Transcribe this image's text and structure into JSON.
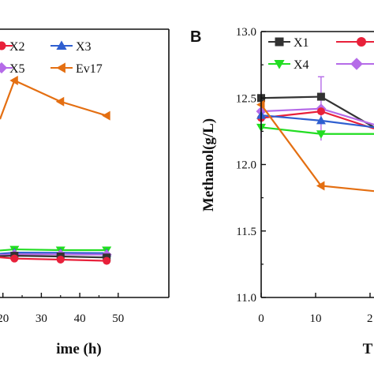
{
  "colors": {
    "X1": "#333333",
    "X2": "#e8203a",
    "X3": "#2f5fd0",
    "X4": "#22dd22",
    "X5": "#b56be8",
    "Ev17": "#e46f12",
    "axis": "#111111"
  },
  "chart_data": [
    {
      "panel": "A",
      "type": "line",
      "xlabel": "Time (h)",
      "ylabel": "",
      "xlim": [
        0,
        50
      ],
      "xticks": [
        "20",
        "30",
        "40",
        "50"
      ],
      "legend": [
        {
          "name": "X2",
          "marker": "circle"
        },
        {
          "name": "X3",
          "marker": "triangle-up"
        },
        {
          "name": "X5",
          "marker": "diamond"
        },
        {
          "name": "Ev17",
          "marker": "triangle-left"
        }
      ],
      "series": [
        {
          "name": "Ev17",
          "marker": "triangle-left",
          "color_key": "Ev17",
          "x": [
            12,
            23,
            35,
            47
          ],
          "y": [
            0.78,
            1.0,
            0.88,
            0.8
          ]
        },
        {
          "name": "X4",
          "marker": "triangle-down",
          "color_key": "X4",
          "x": [
            12,
            23,
            35,
            47
          ],
          "y": [
            0.034,
            0.04,
            0.036,
            0.036
          ]
        },
        {
          "name": "X3",
          "marker": "triangle-up",
          "color_key": "X3",
          "x": [
            12,
            23,
            35,
            47
          ],
          "y": [
            0.015,
            0.022,
            0.021,
            0.019
          ]
        },
        {
          "name": "X5",
          "marker": "diamond",
          "color_key": "X5",
          "x": [
            12,
            23,
            35,
            47
          ],
          "y": [
            0.008,
            0.012,
            0.012,
            0.01
          ]
        },
        {
          "name": "X1",
          "marker": "square",
          "color_key": "X1",
          "x": [
            12,
            23,
            35,
            47
          ],
          "y": [
            0.002,
            0.004,
            0.0,
            -0.006
          ]
        },
        {
          "name": "X2",
          "marker": "circle",
          "color_key": "X2",
          "x": [
            12,
            23,
            35,
            47
          ],
          "y": [
            -0.005,
            -0.012,
            -0.018,
            -0.025
          ]
        }
      ]
    },
    {
      "panel": "B",
      "type": "line",
      "xlabel": "T",
      "ylabel": "Methanol(g/L)",
      "xlim": [
        0,
        25
      ],
      "ylim": [
        11.0,
        13.0
      ],
      "yticks": [
        "11.0",
        "11.5",
        "12.0",
        "12.5",
        "13.0"
      ],
      "xticks": [
        "0",
        "10",
        "2"
      ],
      "legend": [
        {
          "name": "X1",
          "marker": "square"
        },
        {
          "name": "X4",
          "marker": "triangle-down"
        }
      ],
      "series": [
        {
          "name": "X1",
          "marker": "square",
          "color_key": "X1",
          "x": [
            0,
            11,
            25
          ],
          "y": [
            12.5,
            12.51,
            12.28
          ]
        },
        {
          "name": "X5",
          "marker": "diamond",
          "color_key": "X5",
          "x": [
            0,
            11,
            25
          ],
          "y": [
            12.4,
            12.42,
            12.3
          ]
        },
        {
          "name": "X2",
          "marker": "circle",
          "color_key": "X2",
          "x": [
            0,
            11,
            25
          ],
          "y": [
            12.35,
            12.4,
            12.27
          ]
        },
        {
          "name": "X3",
          "marker": "triangle-up",
          "color_key": "X3",
          "x": [
            0,
            11,
            25
          ],
          "y": [
            12.37,
            12.33,
            12.28
          ]
        },
        {
          "name": "X4",
          "marker": "triangle-down",
          "color_key": "X4",
          "x": [
            0,
            11,
            25
          ],
          "y": [
            12.28,
            12.23,
            12.23
          ]
        },
        {
          "name": "Ev17",
          "marker": "triangle-left",
          "color_key": "Ev17",
          "x": [
            0,
            11,
            25
          ],
          "y": [
            12.45,
            11.84,
            11.8
          ]
        }
      ]
    }
  ],
  "panelB_label": "B",
  "panelA_xlabel_visible": "ime (h)",
  "panelB_xlabel_visible": "T"
}
